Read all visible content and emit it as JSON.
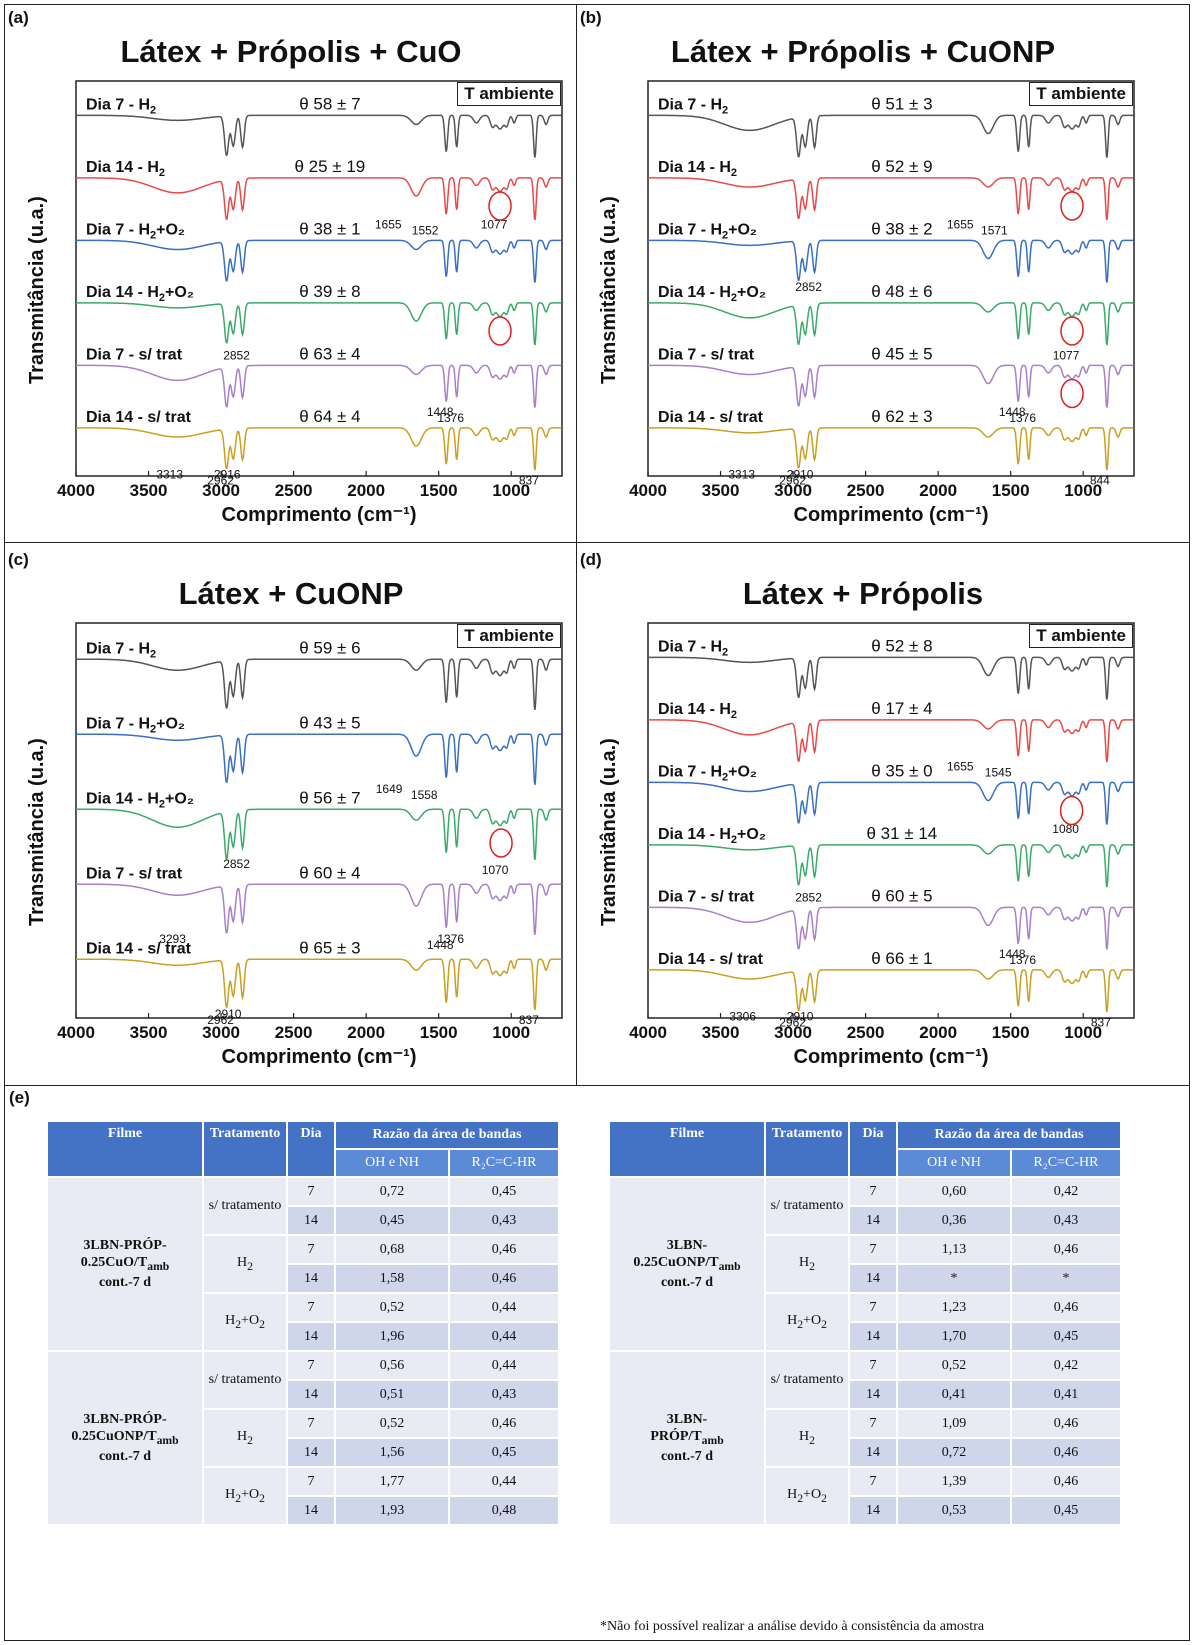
{
  "panels": [
    {
      "label": "(a)",
      "title": "Látex + Própolis + CuO",
      "badge": "T ambiente",
      "series": [
        {
          "name": "Dia 7 - H",
          "n": "2",
          "tail": "",
          "theta": "θ 58 ± 7",
          "color": "#555555"
        },
        {
          "name": "Dia 14 - H",
          "n": "2",
          "tail": "",
          "theta": "θ 25 ± 19",
          "color": "#e84a4a"
        },
        {
          "name": "Dia 7 - H",
          "n": "2",
          "tail": "+O₂",
          "theta": "θ 38 ± 1",
          "color": "#3a6fc4"
        },
        {
          "name": "Dia 14 - H",
          "n": "2",
          "tail": "+O₂",
          "theta": "θ 39 ± 8",
          "color": "#3aaa6a"
        },
        {
          "name": "Dia 7 - s/ trat",
          "n": "",
          "tail": "",
          "theta": "θ 63 ± 4",
          "color": "#a980c8"
        },
        {
          "name": "Dia 14 - s/ trat",
          "n": "",
          "tail": "",
          "theta": "θ 64 ± 4",
          "color": "#c9a020"
        }
      ],
      "annotations": [
        "1655",
        "1552",
        "1077",
        "2852",
        "1448",
        "1376",
        "3313",
        "2962",
        "2916",
        "837"
      ],
      "ylabel": "Transmitância (u.a.)",
      "xlabel": "Comprimento (cm⁻¹)",
      "xticks": [
        "4000",
        "3500",
        "3000",
        "2500",
        "2000",
        "1500",
        "1000"
      ]
    },
    {
      "label": "(b)",
      "title": "Látex + Própolis + CuONP",
      "badge": "T ambiente",
      "series": [
        {
          "name": "Dia 7 - H",
          "n": "2",
          "tail": "",
          "theta": "θ 51 ± 3",
          "color": "#555555"
        },
        {
          "name": "Dia 14 - H",
          "n": "2",
          "tail": "",
          "theta": "θ 52 ± 9",
          "color": "#e84a4a"
        },
        {
          "name": "Dia 7 - H",
          "n": "2",
          "tail": "+O₂",
          "theta": "θ 38 ± 2",
          "color": "#3a6fc4"
        },
        {
          "name": "Dia 14 - H",
          "n": "2",
          "tail": "+O₂",
          "theta": "θ 48 ± 6",
          "color": "#3aaa6a"
        },
        {
          "name": "Dia 7 - s/ trat",
          "n": "",
          "tail": "",
          "theta": "θ 45 ± 5",
          "color": "#a980c8"
        },
        {
          "name": "Dia 14 - s/ trat",
          "n": "",
          "tail": "",
          "theta": "θ 62 ± 3",
          "color": "#c9a020"
        }
      ],
      "annotations": [
        "1655",
        "1571",
        "2852",
        "1077",
        "1448",
        "1376",
        "3313",
        "2962",
        "2910",
        "844"
      ],
      "ylabel": "Transmitância (u.a.)",
      "xlabel": "Comprimento (cm⁻¹)",
      "xticks": [
        "4000",
        "3500",
        "3000",
        "2500",
        "2000",
        "1500",
        "1000"
      ]
    },
    {
      "label": "(c)",
      "title": "Látex + CuONP",
      "badge": "T ambiente",
      "series": [
        {
          "name": "Dia 7 - H",
          "n": "2",
          "tail": "",
          "theta": "θ 59 ± 6",
          "color": "#555555"
        },
        {
          "name": "Dia 7 - H",
          "n": "2",
          "tail": "+O₂",
          "theta": "θ 43 ± 5",
          "color": "#3a6fc4"
        },
        {
          "name": "Dia 14 - H",
          "n": "2",
          "tail": "+O₂",
          "theta": "θ 56 ± 7",
          "color": "#3aaa6a"
        },
        {
          "name": "Dia 7 - s/ trat",
          "n": "",
          "tail": "",
          "theta": "θ 60 ± 4",
          "color": "#a980c8"
        },
        {
          "name": "Dia 14 - s/ trat",
          "n": "",
          "tail": "",
          "theta": "θ 65 ± 3",
          "color": "#c9a020"
        }
      ],
      "annotations": [
        "1649",
        "1558",
        "2852",
        "1070",
        "3293",
        "1448",
        "1376",
        "2962",
        "2910",
        "837"
      ],
      "ylabel": "Transmitância (u.a.)",
      "xlabel": "Comprimento (cm⁻¹)",
      "xticks": [
        "4000",
        "3500",
        "3000",
        "2500",
        "2000",
        "1500",
        "1000"
      ]
    },
    {
      "label": "(d)",
      "title": "Látex + Própolis",
      "badge": "T ambiente",
      "series": [
        {
          "name": "Dia 7 - H",
          "n": "2",
          "tail": "",
          "theta": "θ 52 ± 8",
          "color": "#555555"
        },
        {
          "name": "Dia 14 - H",
          "n": "2",
          "tail": "",
          "theta": "θ 17 ± 4",
          "color": "#e84a4a"
        },
        {
          "name": "Dia 7 - H",
          "n": "2",
          "tail": "+O₂",
          "theta": "θ 35 ± 0",
          "color": "#3a6fc4"
        },
        {
          "name": "Dia 14 - H",
          "n": "2",
          "tail": "+O₂",
          "theta": "θ 31 ± 14",
          "color": "#3aaa6a"
        },
        {
          "name": "Dia 7 - s/ trat",
          "n": "",
          "tail": "",
          "theta": "θ 60 ± 5",
          "color": "#a980c8"
        },
        {
          "name": "Dia 14 - s/ trat",
          "n": "",
          "tail": "",
          "theta": "θ 66 ± 1",
          "color": "#c9a020"
        }
      ],
      "annotations": [
        "1655",
        "1545",
        "1080",
        "2852",
        "1448",
        "1376",
        "3306",
        "2962",
        "2910",
        "837"
      ],
      "ylabel": "Transmitância (u.a.)",
      "xlabel": "Comprimento (cm⁻¹)",
      "xticks": [
        "4000",
        "3500",
        "3000",
        "2500",
        "2000",
        "1500",
        "1000"
      ]
    }
  ],
  "table_label": "(e)",
  "table_headers": {
    "filme": "Filme",
    "tratamento": "Tratamento",
    "dia": "Dia",
    "razao": "Razão da área de bandas",
    "oh": "OH e NH",
    "r2c": "R₂C=C-HR"
  },
  "chart_data": [
    {
      "type": "table",
      "name": "",
      "columns": [
        "Filme",
        "Tratamento",
        "Dia",
        "OH e NH",
        "R2C=C-HR"
      ],
      "groups": [
        {
          "filme": "3LBN-PRÓP-0.25CuO/Tamb cont.-7 d",
          "rows": [
            [
              "s/ tratamento",
              "7",
              "0,72",
              "0,45"
            ],
            [
              "s/ tratamento",
              "14",
              "0,45",
              "0,43"
            ],
            [
              "H2",
              "7",
              "0,68",
              "0,46"
            ],
            [
              "H2",
              "14",
              "1,58",
              "0,46"
            ],
            [
              "H2+O2",
              "7",
              "0,52",
              "0,44"
            ],
            [
              "H2+O2",
              "14",
              "1,96",
              "0,44"
            ]
          ]
        },
        {
          "filme": "3LBN-PRÓP-0.25CuONP/Tamb cont.-7 d",
          "rows": [
            [
              "s/ tratamento",
              "7",
              "0,56",
              "0,44"
            ],
            [
              "s/ tratamento",
              "14",
              "0,51",
              "0,43"
            ],
            [
              "H2",
              "7",
              "0,52",
              "0,46"
            ],
            [
              "H2",
              "14",
              "1,56",
              "0,45"
            ],
            [
              "H2+O2",
              "7",
              "1,77",
              "0,44"
            ],
            [
              "H2+O2",
              "14",
              "1,93",
              "0,48"
            ]
          ]
        }
      ]
    },
    {
      "type": "table",
      "name": "",
      "columns": [
        "Filme",
        "Tratamento",
        "Dia",
        "OH e NH",
        "R2C=C-HR"
      ],
      "groups": [
        {
          "filme": "3LBN-0.25CuONP/Tamb cont.-7 d",
          "rows": [
            [
              "s/ tratamento",
              "7",
              "0,60",
              "0,42"
            ],
            [
              "s/ tratamento",
              "14",
              "0,36",
              "0,43"
            ],
            [
              "H2",
              "7",
              "1,13",
              "0,46"
            ],
            [
              "H2",
              "14",
              "*",
              "*"
            ],
            [
              "H2+O2",
              "7",
              "1,23",
              "0,46"
            ],
            [
              "H2+O2",
              "14",
              "1,70",
              "0,45"
            ]
          ]
        },
        {
          "filme": "3LBN-PRÓP/Tamb cont.-7 d",
          "rows": [
            [
              "s/ tratamento",
              "7",
              "0,52",
              "0,42"
            ],
            [
              "s/ tratamento",
              "14",
              "0,41",
              "0,41"
            ],
            [
              "H2",
              "7",
              "1,09",
              "0,46"
            ],
            [
              "H2",
              "14",
              "0,72",
              "0,46"
            ],
            [
              "H2+O2",
              "7",
              "1,39",
              "0,46"
            ],
            [
              "H2+O2",
              "14",
              "0,53",
              "0,45"
            ]
          ]
        }
      ]
    }
  ],
  "table_text": {
    "left": {
      "g1a": "3LBN-PRÓP-",
      "g1b": "0.25CuO/T",
      "g1sub": "amb",
      "g1c": "cont.-7 d",
      "g2a": "3LBN-PRÓP-",
      "g2b": "0.25CuONP/T",
      "g2sub": "amb",
      "g2c": "cont.-7 d"
    },
    "right": {
      "g1a": "3LBN-",
      "g1b": "0.25CuONP/T",
      "g1sub": "amb",
      "g1c": "cont.-7 d",
      "g2a": "3LBN-",
      "g2b": "PRÓP/T",
      "g2sub": "amb",
      "g2c": "cont.-7 d"
    },
    "trat_s": "s/ tratamento",
    "trat_h": "H",
    "trat_h_sub": "2",
    "trat_ho": "H",
    "trat_ho_sub": "2",
    "trat_ho_tail": "+O",
    "trat_ho_sub2": "2"
  },
  "note": "*Não foi possível realizar a análise devido à consistência da amostra"
}
